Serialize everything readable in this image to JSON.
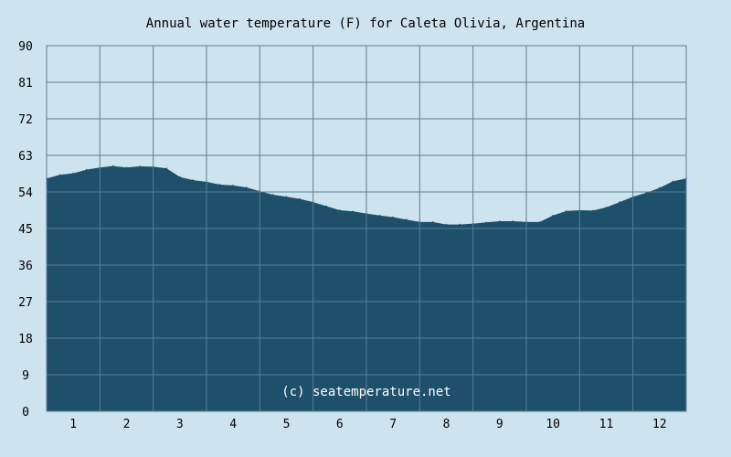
{
  "chart_data": {
    "type": "area",
    "title": "Annual water temperature (F) for Caleta Olivia, Argentina",
    "watermark": "(c) seatemperature.net",
    "xlabel": "",
    "ylabel": "",
    "ylim": [
      0,
      90
    ],
    "y_ticks": [
      0,
      9,
      18,
      27,
      36,
      45,
      54,
      63,
      72,
      81,
      90
    ],
    "x_ticks": [
      1,
      2,
      3,
      4,
      5,
      6,
      7,
      8,
      9,
      10,
      11,
      12
    ],
    "xlim": [
      0.5,
      12.5
    ],
    "grid": true,
    "colors": {
      "background": "#cde3ee",
      "fill": "#1e4f6b",
      "grid": "#5a7f95"
    },
    "series": [
      {
        "x": [
          0.5,
          0.75,
          1.0,
          1.25,
          1.5,
          1.75,
          2.0,
          2.25,
          2.5,
          2.75,
          3.0,
          3.25,
          3.5,
          3.75,
          4.0,
          4.25,
          4.5,
          4.75,
          5.0,
          5.25,
          5.5,
          5.75,
          6.0,
          6.25,
          6.5,
          6.75,
          7.0,
          7.25,
          7.5,
          7.75,
          8.0,
          8.25,
          8.5,
          8.75,
          9.0,
          9.25,
          9.5,
          9.75,
          10.0,
          10.25,
          10.5,
          10.75,
          11.0,
          11.25,
          11.5,
          11.75,
          12.0,
          12.25,
          12.5
        ],
        "y": [
          57.3,
          58.2,
          58.6,
          59.5,
          60.0,
          60.4,
          60.0,
          60.3,
          60.2,
          59.8,
          57.7,
          56.9,
          56.5,
          55.8,
          55.6,
          55.1,
          54.2,
          53.3,
          52.8,
          52.3,
          51.5,
          50.5,
          49.5,
          49.2,
          48.7,
          48.2,
          47.8,
          47.2,
          46.6,
          46.6,
          46.0,
          46.0,
          46.2,
          46.5,
          46.8,
          46.8,
          46.6,
          46.6,
          48.2,
          49.3,
          49.5,
          49.4,
          50.2,
          51.5,
          52.8,
          53.8,
          55.0,
          56.6,
          57.3
        ]
      }
    ]
  }
}
